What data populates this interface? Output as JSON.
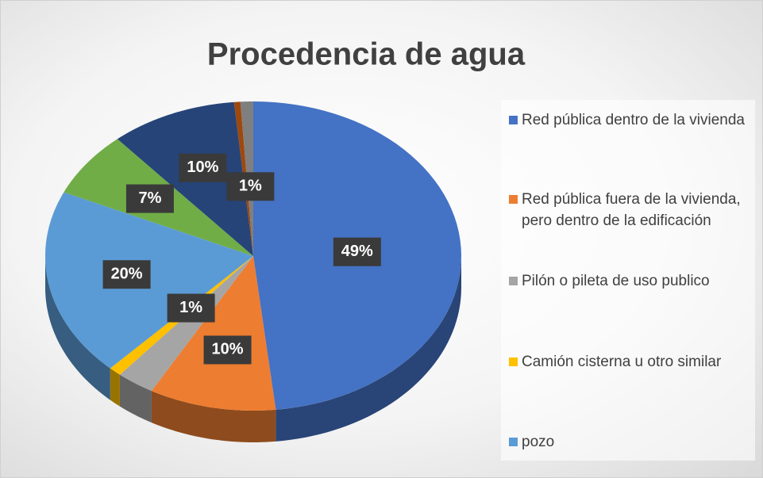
{
  "chart_data": {
    "type": "pie3d",
    "title": "Procedencia de agua",
    "categories": [
      "Red pública dentro de la vivienda",
      "Red pública fuera de la vivienda, pero dentro de la edificación",
      "Pilón o pileta de uso publico",
      "Camión cisterna u otro similar",
      "pozo",
      null,
      null,
      null,
      null
    ],
    "values": [
      49,
      10,
      3,
      1,
      20,
      7,
      10,
      0.5,
      1
    ],
    "value_labels": [
      "49%",
      "10%",
      null,
      "1%",
      "20%",
      "7%",
      "10%",
      null,
      "1%"
    ],
    "colors": [
      "#4472c4",
      "#ed7d31",
      "#a5a5a5",
      "#ffc000",
      "#5b9bd5",
      "#70ad47",
      "#264478",
      "#9e480e",
      "#7f7f7f"
    ],
    "legend": "right"
  }
}
